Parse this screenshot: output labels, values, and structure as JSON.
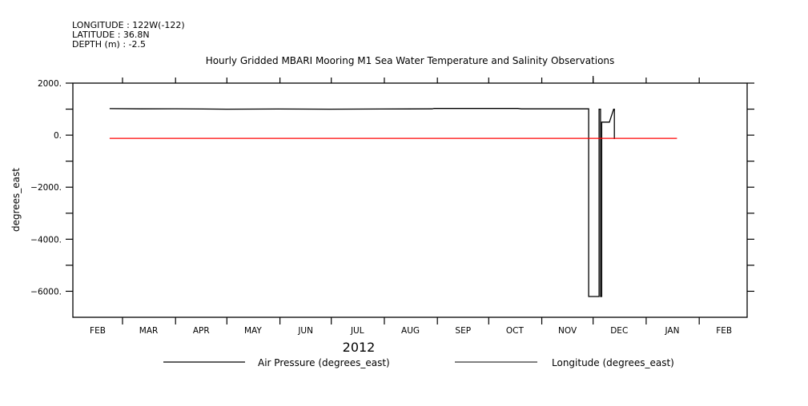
{
  "header": {
    "longitude": "LONGITUDE : 122W(-122)",
    "latitude": "LATITUDE : 36.8N",
    "depth": "DEPTH (m) : -2.5"
  },
  "chart_data": {
    "type": "line",
    "title": "Hourly Gridded MBARI Mooring M1 Sea Water Temperature and Salinity Observations",
    "ylabel": "degrees_east",
    "xlabel": "2012",
    "x_units": "days since 2012-02-01",
    "xlim": [
      0,
      394
    ],
    "ylim": [
      -7000,
      2000
    ],
    "y_ticks": [
      2000,
      0,
      -2000,
      -4000,
      -6000
    ],
    "y_tick_labels": [
      "2000.",
      "0.",
      "-2000.",
      "-4000.",
      "-6000."
    ],
    "y_minor_ticks": [
      1000,
      -1000,
      -3000,
      -5000
    ],
    "x_month_starts": [
      0,
      29,
      60,
      90,
      121,
      151,
      182,
      213,
      243,
      274,
      304,
      335,
      366
    ],
    "x_tick_labels": [
      "FEB",
      "MAR",
      "APR",
      "MAY",
      "JUN",
      "JUL",
      "AUG",
      "SEP",
      "OCT",
      "NOV",
      "DEC",
      "JAN",
      "FEB"
    ],
    "legend_position": "bottom",
    "series": [
      {
        "name": "Air Pressure (degrees_east)",
        "color": "#000000",
        "points": [
          [
            21.5,
            1020
          ],
          [
            40,
            1010
          ],
          [
            60,
            1015
          ],
          [
            90,
            1000
          ],
          [
            120,
            1005
          ],
          [
            150,
            1000
          ],
          [
            180,
            1005
          ],
          [
            210,
            1010
          ],
          [
            211,
            1030
          ],
          [
            260,
            1025
          ],
          [
            262,
            1010
          ],
          [
            301.4,
            1010
          ],
          [
            301.4,
            -6200
          ],
          [
            307.5,
            -6200
          ],
          [
            307.5,
            1000
          ],
          [
            308.3,
            1000
          ],
          [
            308.3,
            -6200
          ],
          [
            309,
            -6200
          ],
          [
            309,
            500
          ],
          [
            313.5,
            500
          ],
          [
            316,
            1000
          ],
          [
            316.4,
            1000
          ],
          [
            316.4,
            -150
          ]
        ]
      },
      {
        "name": "Longitude (degrees_east)",
        "color": "#ff0000",
        "legend_color": "#000000",
        "points": [
          [
            21.5,
            -122
          ],
          [
            353,
            -122
          ]
        ]
      }
    ]
  }
}
